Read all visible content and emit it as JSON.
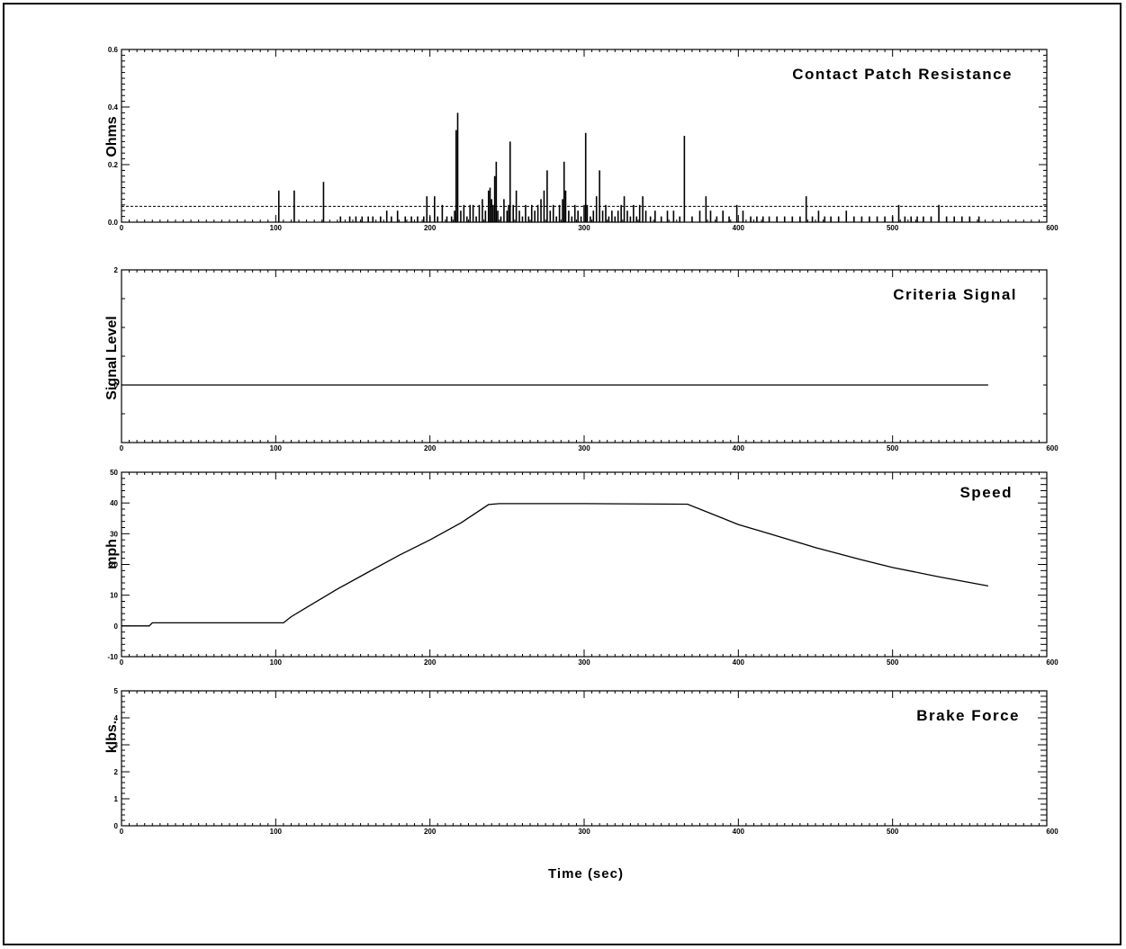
{
  "xlabel": "Time (sec)",
  "colors": {
    "ink": "#000000",
    "background": "#ffffff"
  },
  "chart_data": [
    {
      "id": "resistance",
      "type": "bar",
      "title": "Contact Patch Resistance",
      "ylabel": "Ohms",
      "xlim": [
        0,
        600
      ],
      "ylim": [
        0.0,
        0.6
      ],
      "xticks": [
        "0",
        "100",
        "200",
        "300",
        "400",
        "500",
        "600"
      ],
      "yticks": [
        "0.0",
        "0.2",
        "0.4",
        "0.6"
      ],
      "threshold": 0.055,
      "x": [
        102,
        112,
        131,
        142,
        148,
        152,
        156,
        160,
        163,
        168,
        172,
        175,
        179,
        184,
        188,
        192,
        196,
        198,
        200,
        203,
        205,
        208,
        211,
        214,
        216,
        217,
        218,
        220,
        222,
        224,
        226,
        228,
        230,
        232,
        234,
        236,
        238,
        239,
        240,
        241,
        242,
        243,
        244,
        246,
        248,
        250,
        251,
        252,
        254,
        256,
        258,
        260,
        262,
        264,
        266,
        268,
        270,
        272,
        274,
        276,
        278,
        280,
        282,
        284,
        286,
        287,
        288,
        290,
        292,
        294,
        296,
        298,
        300,
        301,
        302,
        304,
        306,
        308,
        310,
        312,
        314,
        316,
        318,
        320,
        322,
        324,
        326,
        328,
        330,
        332,
        334,
        336,
        338,
        340,
        343,
        346,
        350,
        354,
        358,
        362,
        365,
        370,
        375,
        379,
        382,
        386,
        390,
        394,
        399,
        403,
        408,
        412,
        416,
        420,
        425,
        430,
        435,
        440,
        444,
        448,
        452,
        456,
        460,
        465,
        470,
        475,
        480,
        485,
        490,
        495,
        500,
        504,
        508,
        512,
        516,
        520,
        525,
        530,
        535,
        540,
        545,
        550,
        556
      ],
      "values": [
        0.11,
        0.11,
        0.14,
        0.02,
        0.02,
        0.02,
        0.02,
        0.02,
        0.02,
        0.02,
        0.04,
        0.02,
        0.04,
        0.02,
        0.02,
        0.02,
        0.02,
        0.09,
        0.02,
        0.09,
        0.02,
        0.06,
        0.02,
        0.02,
        0.04,
        0.32,
        0.38,
        0.04,
        0.06,
        0.02,
        0.06,
        0.06,
        0.02,
        0.06,
        0.08,
        0.04,
        0.11,
        0.12,
        0.08,
        0.06,
        0.16,
        0.21,
        0.04,
        0.02,
        0.08,
        0.04,
        0.06,
        0.28,
        0.06,
        0.11,
        0.04,
        0.02,
        0.06,
        0.02,
        0.06,
        0.04,
        0.06,
        0.08,
        0.11,
        0.18,
        0.04,
        0.06,
        0.02,
        0.06,
        0.08,
        0.21,
        0.11,
        0.04,
        0.02,
        0.06,
        0.04,
        0.02,
        0.06,
        0.31,
        0.06,
        0.02,
        0.04,
        0.09,
        0.18,
        0.04,
        0.06,
        0.02,
        0.04,
        0.02,
        0.04,
        0.06,
        0.09,
        0.04,
        0.02,
        0.06,
        0.02,
        0.06,
        0.09,
        0.04,
        0.02,
        0.04,
        0.02,
        0.04,
        0.04,
        0.02,
        0.3,
        0.02,
        0.04,
        0.09,
        0.04,
        0.02,
        0.04,
        0.02,
        0.06,
        0.04,
        0.02,
        0.02,
        0.02,
        0.02,
        0.02,
        0.02,
        0.02,
        0.02,
        0.09,
        0.02,
        0.04,
        0.02,
        0.02,
        0.02,
        0.04,
        0.02,
        0.02,
        0.02,
        0.02,
        0.02,
        0.02,
        0.06,
        0.02,
        0.02,
        0.02,
        0.02,
        0.02,
        0.06,
        0.02,
        0.02,
        0.02,
        0.02,
        0.02
      ]
    },
    {
      "id": "criteria",
      "type": "line",
      "title": "Criteria Signal",
      "ylabel": "Signal Level",
      "xlim": [
        0,
        600
      ],
      "ylim": [
        -1,
        2
      ],
      "xticks": [
        "0",
        "100",
        "200",
        "300",
        "400",
        "500",
        "600"
      ],
      "yticks": [
        "0",
        "2"
      ],
      "x": [
        0,
        562
      ],
      "y": [
        0,
        0
      ]
    },
    {
      "id": "speed",
      "type": "line",
      "title": "Speed",
      "ylabel": "mph",
      "xlim": [
        0,
        600
      ],
      "ylim": [
        -10,
        50
      ],
      "xticks": [
        "0",
        "100",
        "200",
        "300",
        "400",
        "500",
        "600"
      ],
      "yticks": [
        "-10",
        "0",
        "10",
        "20",
        "30",
        "40",
        "50"
      ],
      "x": [
        0,
        18,
        20,
        22,
        105,
        110,
        120,
        140,
        160,
        180,
        200,
        220,
        238,
        245,
        300,
        367,
        380,
        400,
        420,
        450,
        480,
        500,
        530,
        562
      ],
      "y": [
        0,
        0,
        1,
        1,
        1,
        3,
        6,
        12,
        17.5,
        23,
        28,
        33.5,
        39.5,
        39.8,
        39.8,
        39.6,
        37,
        33,
        30,
        25.5,
        21.5,
        19,
        16,
        13
      ]
    },
    {
      "id": "brake",
      "type": "line",
      "title": "Brake Force",
      "ylabel": "klbs.",
      "xlim": [
        0,
        600
      ],
      "ylim": [
        0,
        5
      ],
      "xticks": [
        "0",
        "100",
        "200",
        "300",
        "400",
        "500",
        "600"
      ],
      "yticks": [
        "0",
        "1",
        "2",
        "3",
        "4",
        "5"
      ],
      "x": [],
      "y": []
    }
  ]
}
